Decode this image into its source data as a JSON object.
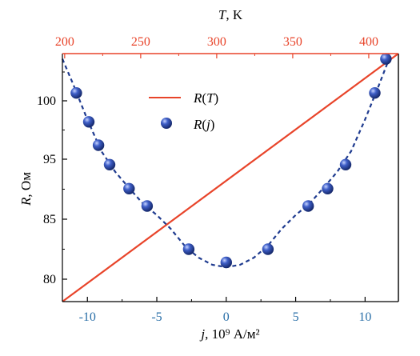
{
  "chart_data": {
    "type": "scatter",
    "axes": {
      "bottom": {
        "label_var": "j",
        "label_rest": ", 10⁹ А/м²",
        "ticks": [
          -10,
          -5,
          0,
          5,
          10
        ],
        "tick_labels": [
          "-10",
          "-5",
          "0",
          "5",
          "10"
        ],
        "range": [
          -11.8,
          12.4
        ]
      },
      "top": {
        "label_var": "T",
        "label_rest": ", K",
        "ticks": [
          200,
          250,
          300,
          350,
          400
        ],
        "tick_labels": [
          "200",
          "250",
          "300",
          "350",
          "400"
        ],
        "range": [
          198.5,
          419.5
        ]
      },
      "left": {
        "label_var": "R",
        "label_rest": ", Ом",
        "ticks": [
          80,
          85,
          95,
          100
        ],
        "tick_labels": [
          "80",
          "85",
          "95",
          "100"
        ],
        "range": [
          78.3,
          103.6
        ],
        "note": "tick spacing as printed on the original (labels 85 and 95 separated by two intervals)"
      }
    },
    "series": [
      {
        "name": "R(T)",
        "legend_parts": [
          "R",
          "(",
          "T",
          ")"
        ],
        "kind": "line",
        "axis_x": "top",
        "color": "#e8442a",
        "points": [
          [
            198.5,
            78.3
          ],
          [
            419.5,
            104.2
          ]
        ]
      },
      {
        "name": "R(j)",
        "legend_parts": [
          "R",
          "(",
          "j",
          ")"
        ],
        "kind": "scatter",
        "axis_x": "bottom",
        "color": "#1f3b8f",
        "points": [
          [
            -10.8,
            100.6
          ],
          [
            -9.9,
            98.2
          ],
          [
            -9.2,
            96.2
          ],
          [
            -8.4,
            94.1
          ],
          [
            -7.0,
            90.1
          ],
          [
            -5.7,
            87.2
          ],
          [
            -2.7,
            82.5
          ],
          [
            0.0,
            81.4
          ],
          [
            3.0,
            82.5
          ],
          [
            5.9,
            87.2
          ],
          [
            7.3,
            90.1
          ],
          [
            8.6,
            94.1
          ],
          [
            10.7,
            100.6
          ],
          [
            11.5,
            103.2
          ]
        ]
      },
      {
        "name": "",
        "kind": "fit",
        "axis_x": "bottom",
        "color": "#1f3b8f",
        "dashed": true,
        "points": [
          [
            -11.8,
            103.2
          ],
          [
            -11.0,
            101.2
          ],
          [
            -10.0,
            98.4
          ],
          [
            -9.0,
            95.7
          ],
          [
            -8.0,
            92.9
          ],
          [
            -7.0,
            90.2
          ],
          [
            -6.0,
            87.6
          ],
          [
            -5.0,
            85.7
          ],
          [
            -4.0,
            84.2
          ],
          [
            -3.0,
            82.8
          ],
          [
            -2.0,
            81.8
          ],
          [
            -1.0,
            81.2
          ],
          [
            0.0,
            81.0
          ],
          [
            1.0,
            81.2
          ],
          [
            2.0,
            81.8
          ],
          [
            3.0,
            82.8
          ],
          [
            4.0,
            84.2
          ],
          [
            5.0,
            85.7
          ],
          [
            6.0,
            87.6
          ],
          [
            7.0,
            90.2
          ],
          [
            8.0,
            92.9
          ],
          [
            9.0,
            95.7
          ],
          [
            10.0,
            98.4
          ],
          [
            11.0,
            101.2
          ],
          [
            11.8,
            103.4
          ]
        ]
      }
    ],
    "legend": {
      "position": "upper-center"
    },
    "grid": false,
    "colors": {
      "top_axis": "#e8442a",
      "bottom_ticks": "#2a6fa8",
      "frame": "#000000"
    }
  }
}
